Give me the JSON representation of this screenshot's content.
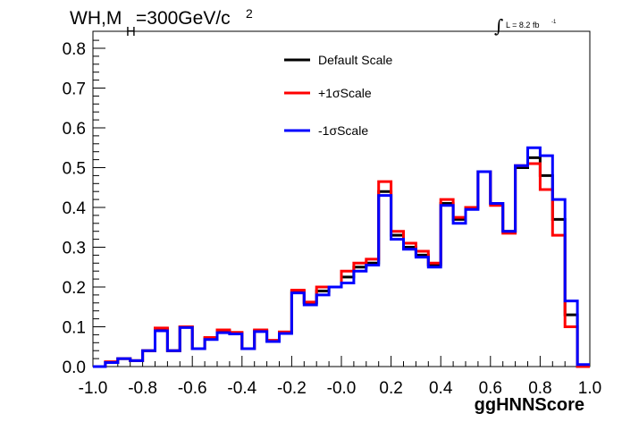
{
  "chart_data": {
    "type": "line",
    "title_main": "WH,M",
    "title_sub": "H",
    "title_rest": "=300GeV/c",
    "title_sup": "2",
    "lumi_integral": "∫",
    "lumi_text": "L = 8.2 fb",
    "lumi_sup": "-1",
    "xlabel": "ggHNNScore",
    "ylabel": "",
    "xlim": [
      -1.0,
      1.0
    ],
    "ylim": [
      0.0,
      0.85
    ],
    "x_ticks": [
      "-1.0",
      "-0.8",
      "-0.6",
      "-0.4",
      "-0.2",
      "-0.0",
      "0.2",
      "0.4",
      "0.6",
      "0.8",
      "1.0"
    ],
    "y_ticks": [
      "0.0",
      "0.1",
      "0.2",
      "0.3",
      "0.4",
      "0.5",
      "0.6",
      "0.7",
      "0.8"
    ],
    "legend_position": "top-center",
    "bin_edges": [
      -1.0,
      -0.95,
      -0.9,
      -0.85,
      -0.8,
      -0.75,
      -0.7,
      -0.65,
      -0.6,
      -0.55,
      -0.5,
      -0.45,
      -0.4,
      -0.35,
      -0.3,
      -0.25,
      -0.2,
      -0.15,
      -0.1,
      -0.05,
      0.0,
      0.05,
      0.1,
      0.15,
      0.2,
      0.25,
      0.3,
      0.35,
      0.4,
      0.45,
      0.5,
      0.55,
      0.6,
      0.65,
      0.7,
      0.75,
      0.8,
      0.85,
      0.9,
      0.95,
      1.0
    ],
    "series": [
      {
        "name": "Default Scale",
        "color": "#000000",
        "values": [
          0.0,
          0.01,
          0.02,
          0.015,
          0.04,
          0.095,
          0.04,
          0.1,
          0.045,
          0.07,
          0.09,
          0.085,
          0.045,
          0.09,
          0.065,
          0.085,
          0.19,
          0.16,
          0.19,
          0.2,
          0.225,
          0.25,
          0.26,
          0.44,
          0.33,
          0.3,
          0.28,
          0.255,
          0.41,
          0.37,
          0.4,
          0.49,
          0.41,
          0.34,
          0.5,
          0.525,
          0.48,
          0.37,
          0.13,
          0.0
        ]
      },
      {
        "name": "+1σScale",
        "color": "#ff0000",
        "values": [
          0.0,
          0.012,
          0.02,
          0.015,
          0.04,
          0.097,
          0.04,
          0.1,
          0.045,
          0.073,
          0.092,
          0.086,
          0.045,
          0.092,
          0.066,
          0.087,
          0.192,
          0.162,
          0.2,
          0.2,
          0.24,
          0.26,
          0.27,
          0.465,
          0.34,
          0.31,
          0.29,
          0.26,
          0.42,
          0.375,
          0.4,
          0.49,
          0.405,
          0.335,
          0.505,
          0.51,
          0.445,
          0.33,
          0.1,
          0.0
        ]
      },
      {
        "name": "-1σScale",
        "color": "#0000ff",
        "values": [
          0.0,
          0.01,
          0.02,
          0.015,
          0.04,
          0.09,
          0.04,
          0.098,
          0.045,
          0.068,
          0.085,
          0.082,
          0.045,
          0.088,
          0.063,
          0.083,
          0.185,
          0.155,
          0.18,
          0.2,
          0.21,
          0.24,
          0.255,
          0.43,
          0.32,
          0.295,
          0.275,
          0.25,
          0.405,
          0.36,
          0.395,
          0.49,
          0.41,
          0.34,
          0.505,
          0.55,
          0.53,
          0.42,
          0.165,
          0.005
        ]
      }
    ]
  }
}
